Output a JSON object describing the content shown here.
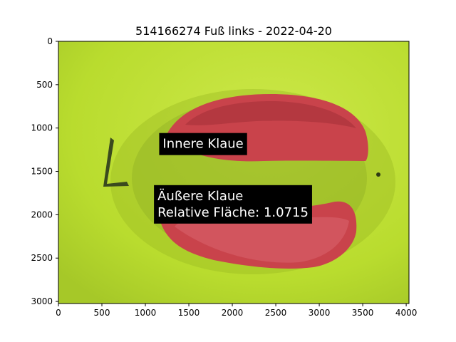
{
  "chart_data": {
    "type": "image",
    "title": "514166274 Fuß links - 2022-04-20",
    "xlabel": "",
    "ylabel": "",
    "xlim": [
      0,
      4032
    ],
    "ylim": [
      3024,
      0
    ],
    "x_ticks": [
      0,
      500,
      1000,
      1500,
      2000,
      2500,
      3000,
      3500,
      4000
    ],
    "y_ticks": [
      0,
      500,
      1000,
      1500,
      2000,
      2500,
      3000
    ],
    "grid": false,
    "colors": {
      "background": "#b9dc2e",
      "background_light": "#c8e640",
      "shadow": "#7f9a22",
      "claw_fill": "#c9434b",
      "claw_dark": "#a23038",
      "claw_light": "#d9626a",
      "marker": "#3a4a1e",
      "annotation_bg": "#000000",
      "annotation_text": "#ffffff"
    },
    "annotations": [
      {
        "id": "inner",
        "lines": [
          "Innere Klaue"
        ],
        "x": 1200,
        "y": 1230
      },
      {
        "id": "outer",
        "lines": [
          "Äußere Klaue",
          "Relative Fläche: 1.0715"
        ],
        "x": 1140,
        "y": 2020
      }
    ]
  }
}
